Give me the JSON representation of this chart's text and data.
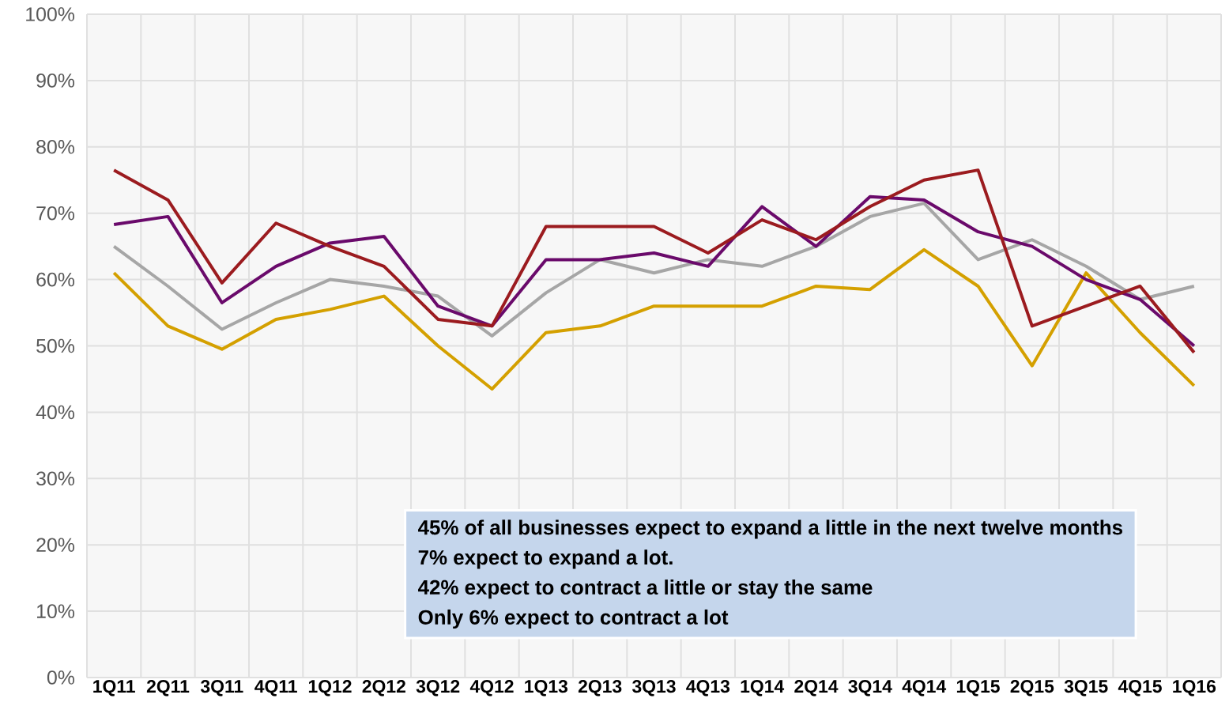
{
  "chart_data": {
    "type": "line",
    "categories": [
      "1Q11",
      "2Q11",
      "3Q11",
      "4Q11",
      "1Q12",
      "2Q12",
      "3Q12",
      "4Q12",
      "1Q13",
      "2Q13",
      "3Q13",
      "4Q13",
      "1Q14",
      "2Q14",
      "3Q14",
      "4Q14",
      "1Q15",
      "2Q15",
      "3Q15",
      "4Q15",
      "1Q16"
    ],
    "series": [
      {
        "color": "#a6a6a6",
        "values": [
          65,
          59,
          52.5,
          56.5,
          60,
          59,
          57.5,
          51.5,
          58,
          63,
          61,
          63,
          62,
          65,
          69.5,
          71.5,
          63,
          66,
          62,
          57,
          59
        ]
      },
      {
        "color": "#d4a000",
        "values": [
          61,
          53,
          49.5,
          54,
          55.5,
          57.5,
          50,
          43.5,
          52,
          53,
          56,
          56,
          56,
          59,
          58.5,
          64.5,
          59,
          47,
          61,
          52,
          44
        ]
      },
      {
        "color": "#6a0a6b",
        "values": [
          68.3,
          69.5,
          56.5,
          62,
          65.5,
          66.5,
          56,
          53,
          63,
          63,
          64,
          62,
          71,
          65,
          72.5,
          72,
          67.2,
          65,
          60,
          57,
          50
        ]
      },
      {
        "color": "#9b1b1f",
        "values": [
          76.5,
          72,
          59.5,
          68.5,
          65,
          62,
          54,
          53,
          68,
          68,
          68,
          64,
          69,
          66,
          71,
          75,
          76.5,
          53,
          56,
          59,
          49
        ]
      }
    ],
    "ylim": [
      0,
      100
    ],
    "yticks": [
      {
        "value": 0,
        "label": "0%"
      },
      {
        "value": 10,
        "label": "10%"
      },
      {
        "value": 20,
        "label": "20%"
      },
      {
        "value": 30,
        "label": "30%"
      },
      {
        "value": 40,
        "label": "40%"
      },
      {
        "value": 50,
        "label": "50%"
      },
      {
        "value": 60,
        "label": "60%"
      },
      {
        "value": 70,
        "label": "70%"
      },
      {
        "value": 80,
        "label": "80%"
      },
      {
        "value": 90,
        "label": "90%"
      },
      {
        "value": 100,
        "label": "100%"
      }
    ],
    "grid": true,
    "line_style": "solid",
    "annotations": [
      "45% of all businesses expect to expand a little in the next twelve months",
      "7% expect to expand a lot.",
      "42% expect to contract a little or stay the same",
      "Only 6% expect to contract a lot"
    ]
  }
}
